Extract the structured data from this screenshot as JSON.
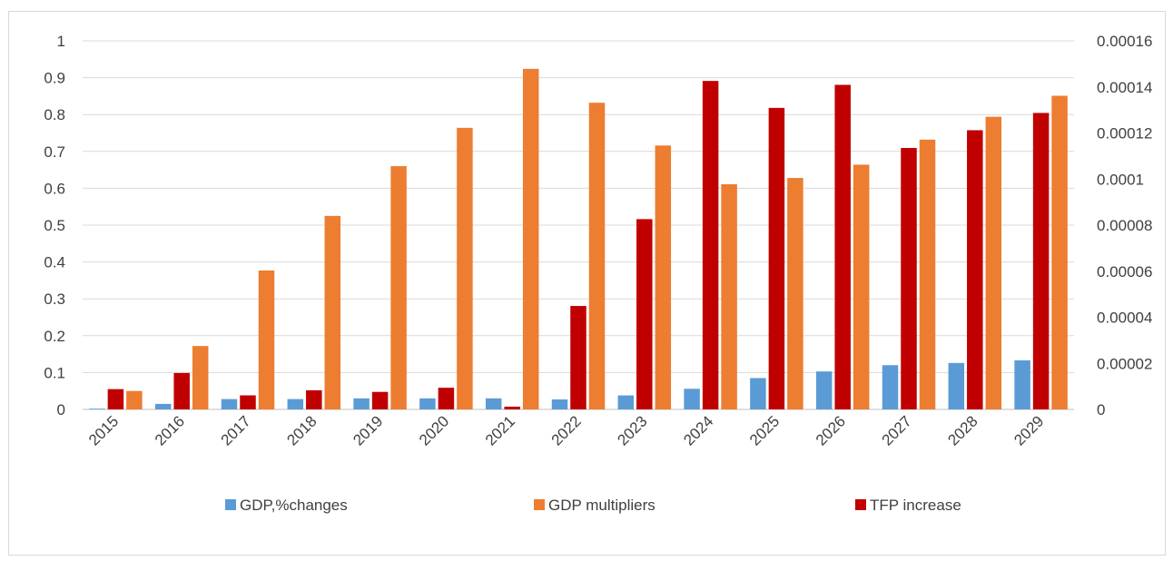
{
  "chart_data": {
    "type": "bar",
    "categories": [
      "2015",
      "2016",
      "2017",
      "2018",
      "2019",
      "2020",
      "2021",
      "2022",
      "2023",
      "2024",
      "2025",
      "2026",
      "2027",
      "2028",
      "2029"
    ],
    "series": [
      {
        "name": "GDP,%changes",
        "axis": "left",
        "color": "#5b9bd5",
        "values": [
          0.002,
          0.015,
          0.028,
          0.028,
          0.03,
          0.03,
          0.03,
          0.027,
          0.038,
          0.056,
          0.085,
          0.103,
          0.12,
          0.126,
          0.133
        ]
      },
      {
        "name": "GDP multipliers",
        "axis": "left",
        "color": "#ed7d31",
        "values": [
          0.05,
          0.172,
          0.377,
          0.525,
          0.66,
          0.764,
          0.924,
          0.832,
          0.716,
          0.611,
          0.628,
          0.664,
          0.732,
          0.794,
          0.851
        ]
      },
      {
        "name": "TFP increase",
        "axis": "right",
        "color": "#c00000",
        "values": [
          8.8e-06,
          1.58e-05,
          6.1e-06,
          8.3e-06,
          7.6e-06,
          9.4e-06,
          1.2e-06,
          4.49e-05,
          8.26e-05,
          0.0001426,
          0.0001309,
          0.0001409,
          0.0001135,
          0.0001212,
          0.0001287
        ]
      }
    ],
    "y_left": {
      "ylim": [
        0,
        1
      ],
      "ticks": [
        "0",
        "0.1",
        "0.2",
        "0.3",
        "0.4",
        "0.5",
        "0.6",
        "0.7",
        "0.8",
        "0.9",
        "1"
      ]
    },
    "y_right": {
      "ylim": [
        0,
        0.00016
      ],
      "ticks": [
        "0",
        "0.00002",
        "0.00004",
        "0.00006",
        "0.00008",
        "0.0001",
        "0.00012",
        "0.00014",
        "0.00016"
      ]
    },
    "grid": true,
    "legend_position": "bottom",
    "title": "",
    "xlabel": "",
    "ylabel": ""
  },
  "colors": {
    "gridline": "#d9d9d9",
    "axis": "#bfbfbf",
    "text": "#404040"
  }
}
